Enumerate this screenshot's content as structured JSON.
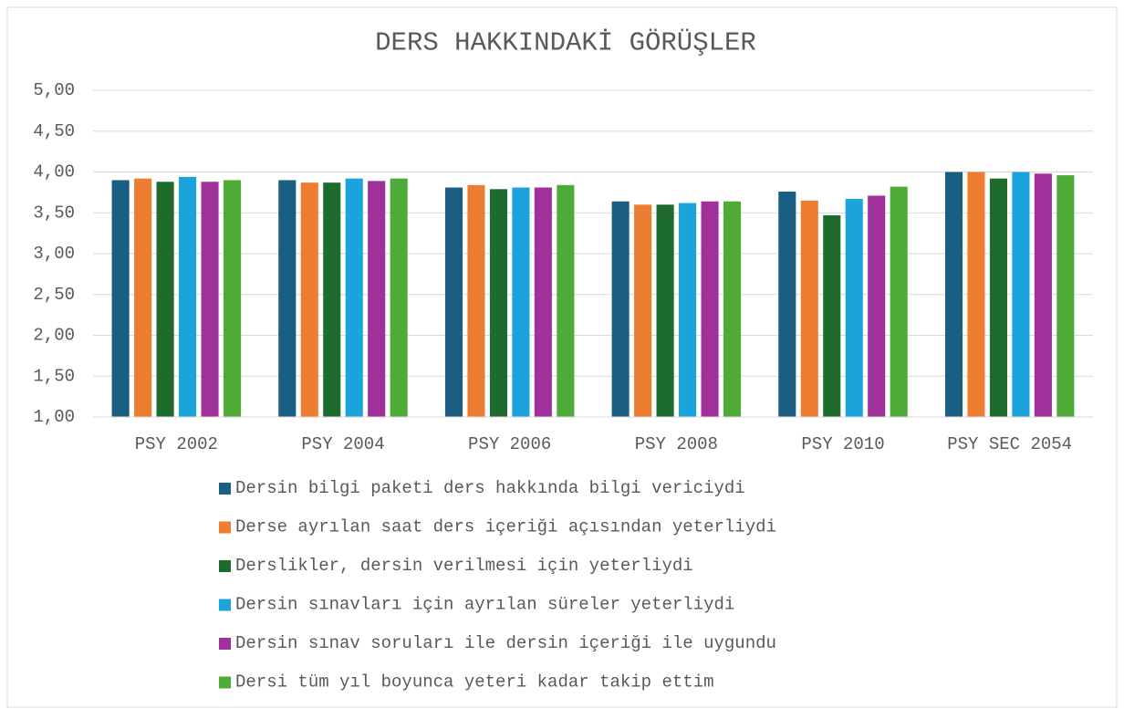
{
  "chart_data": {
    "type": "bar",
    "title": "DERS HAKKINDAKİ GÖRÜŞLER",
    "categories": [
      "PSY 2002",
      "PSY 2004",
      "PSY 2006",
      "PSY 2008",
      "PSY 2010",
      "PSY SEC 2054"
    ],
    "series": [
      {
        "name": "Dersin bilgi paketi ders hakkında bilgi vericiydi",
        "color": "#1b5e84",
        "values": [
          3.9,
          3.9,
          3.81,
          3.64,
          3.76,
          4.0
        ]
      },
      {
        "name": "Derse ayrılan saat ders içeriği açısından yeterliydi",
        "color": "#ed7d31",
        "values": [
          3.92,
          3.87,
          3.84,
          3.6,
          3.65,
          4.0
        ]
      },
      {
        "name": "Derslikler, dersin verilmesi için yeterliydi",
        "color": "#1e6b2e",
        "values": [
          3.88,
          3.87,
          3.79,
          3.6,
          3.47,
          3.92
        ]
      },
      {
        "name": "Dersin sınavları için ayrılan süreler yeterliydi",
        "color": "#1ba3dc",
        "values": [
          3.94,
          3.92,
          3.81,
          3.62,
          3.67,
          4.0
        ]
      },
      {
        "name": "Dersin sınav soruları ile dersin içeriği ile uygundu",
        "color": "#a0309a",
        "values": [
          3.88,
          3.89,
          3.81,
          3.64,
          3.71,
          3.98
        ]
      },
      {
        "name": "Dersi tüm yıl boyunca yeteri kadar takip ettim",
        "color": "#4eab37",
        "values": [
          3.9,
          3.92,
          3.84,
          3.64,
          3.82,
          3.96
        ]
      }
    ],
    "ylim": [
      1,
      5
    ],
    "yticks": [
      {
        "value": 1,
        "label": "1,00"
      },
      {
        "value": 1.5,
        "label": "1,50"
      },
      {
        "value": 2,
        "label": "2,00"
      },
      {
        "value": 2.5,
        "label": "2,50"
      },
      {
        "value": 3,
        "label": "3,00"
      },
      {
        "value": 3.5,
        "label": "3,50"
      },
      {
        "value": 4,
        "label": "4,00"
      },
      {
        "value": 4.5,
        "label": "4,50"
      },
      {
        "value": 5,
        "label": "5,00"
      }
    ],
    "grid": true,
    "legend": "bottom"
  }
}
